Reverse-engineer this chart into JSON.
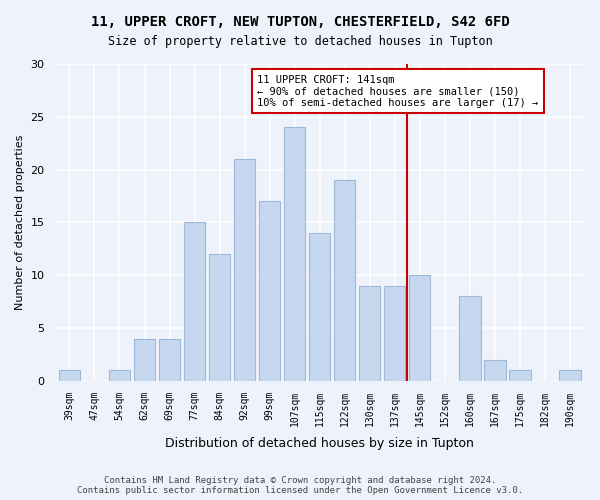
{
  "title_line1": "11, UPPER CROFT, NEW TUPTON, CHESTERFIELD, S42 6FD",
  "title_line2": "Size of property relative to detached houses in Tupton",
  "xlabel": "Distribution of detached houses by size in Tupton",
  "ylabel": "Number of detached properties",
  "categories": [
    "39sqm",
    "47sqm",
    "54sqm",
    "62sqm",
    "69sqm",
    "77sqm",
    "84sqm",
    "92sqm",
    "99sqm",
    "107sqm",
    "115sqm",
    "122sqm",
    "130sqm",
    "137sqm",
    "145sqm",
    "152sqm",
    "160sqm",
    "167sqm",
    "175sqm",
    "182sqm",
    "190sqm"
  ],
  "values": [
    1,
    0,
    1,
    4,
    4,
    15,
    12,
    21,
    17,
    24,
    14,
    19,
    9,
    9,
    10,
    0,
    8,
    2,
    1,
    0,
    1
  ],
  "bar_color": "#c5d8f0",
  "bar_edgecolor": "#a0b8d8",
  "vline_color": "#cc0000",
  "annotation_text": "11 UPPER CROFT: 141sqm\n← 90% of detached houses are smaller (150)\n10% of semi-detached houses are larger (17) →",
  "annotation_box_edgecolor": "#cc0000",
  "ylim": [
    0,
    30
  ],
  "yticks": [
    0,
    5,
    10,
    15,
    20,
    25,
    30
  ],
  "footer_text": "Contains HM Land Registry data © Crown copyright and database right 2024.\nContains public sector information licensed under the Open Government Licence v3.0.",
  "background_color": "#eef2fb",
  "grid_color": "#ffffff"
}
